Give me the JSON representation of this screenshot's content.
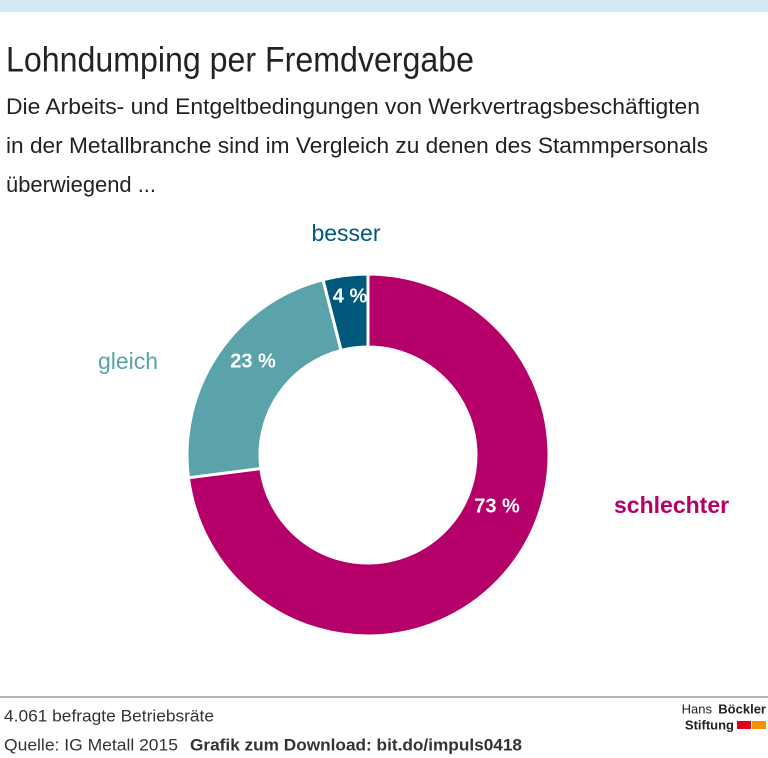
{
  "chart_data": {
    "type": "donut",
    "title": "Lohndumping per Fremdvergabe",
    "subtitle": [
      "Die Arbeits- und Entgeltbedingungen von Werkvertragsbeschäftigten",
      "in der Metallbranche sind im Vergleich zu denen des Stammpersonals",
      "überwiegend ..."
    ],
    "categories": [
      "schlechter",
      "gleich",
      "besser"
    ],
    "values": [
      73,
      23,
      4
    ],
    "value_labels": [
      "73 %",
      "23 %",
      "4 %"
    ],
    "colors": [
      "#b5006a",
      "#5aa3aa",
      "#00587c"
    ]
  },
  "footer": {
    "note": "4.061 befragte Betriebsräte",
    "source": "Quelle: IG Metall 2015",
    "download": "Grafik zum Download: bit.do/impuls0418"
  },
  "logo": {
    "hans": "Hans",
    "boeckler": "Böckler",
    "stiftung": "Stiftung"
  }
}
